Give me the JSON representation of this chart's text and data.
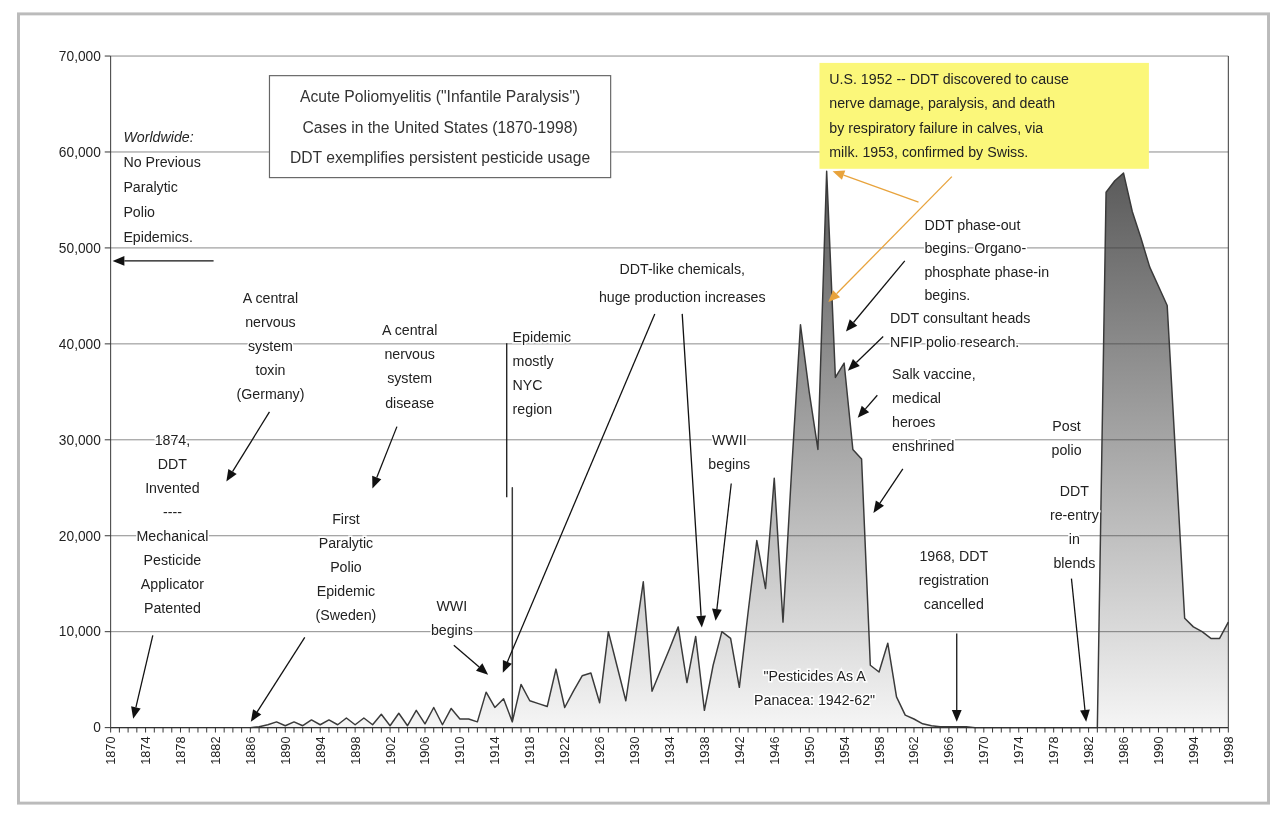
{
  "chart_data": {
    "type": "area",
    "title": "Acute Poliomyelitis (\"Infantile Paralysis\")",
    "subtitle": "Cases in the United States (1870-1998)\nDDT exemplifies persistent pesticide usage",
    "xlim": [
      1870,
      1998
    ],
    "xticks": [
      1870,
      1874,
      1878,
      1882,
      1886,
      1890,
      1894,
      1898,
      1902,
      1906,
      1910,
      1914,
      1918,
      1922,
      1926,
      1930,
      1934,
      1938,
      1942,
      1946,
      1950,
      1954,
      1958,
      1962,
      1966,
      1970,
      1974,
      1978,
      1982,
      1986,
      1990,
      1994,
      1998
    ],
    "ylim": [
      0,
      70000
    ],
    "yticks": [
      0,
      {
        "value": 10000,
        "label": "10,000"
      },
      {
        "value": 20000,
        "label": "20,000"
      },
      {
        "value": 30000,
        "label": "30,000"
      },
      {
        "value": 40000,
        "label": "40,000"
      },
      {
        "value": 50000,
        "label": "50,000"
      },
      {
        "value": 60000,
        "label": "60,000"
      },
      {
        "value": 70000,
        "label": "70,000"
      }
    ],
    "grid": "y",
    "series": [
      {
        "color": "#3a3a3a",
        "x": [
          1886,
          1887,
          1888,
          1889,
          1890,
          1891,
          1892,
          1893,
          1894,
          1895,
          1896,
          1897,
          1898,
          1899,
          1900,
          1901,
          1902,
          1903,
          1904,
          1905,
          1906,
          1907,
          1908,
          1909,
          1910,
          1911,
          1912,
          1913,
          1914,
          1915,
          1916,
          1916,
          1916,
          1917,
          1918,
          1919,
          1920,
          1921,
          1922,
          1923,
          1924,
          1925,
          1926,
          1927,
          1928,
          1929,
          1930,
          1931,
          1932,
          1933,
          1934,
          1935,
          1936,
          1937,
          1938,
          1939,
          1940,
          1941,
          1942,
          1943,
          1944,
          1945,
          1946,
          1947,
          1948,
          1949,
          1950,
          1951,
          1952,
          1953,
          1954,
          1955,
          1956,
          1957,
          1958,
          1959,
          1960,
          1961,
          1962,
          1963,
          1964,
          1965,
          1966,
          1967,
          1968,
          1969,
          1970,
          1975,
          1980,
          1983,
          1984,
          1985,
          1986,
          1987,
          1988,
          1989,
          1990,
          1991,
          1992,
          1993,
          1994,
          1995,
          1996,
          1997,
          1998
        ],
        "values": [
          0,
          100,
          300,
          600,
          200,
          600,
          200,
          800,
          300,
          800,
          300,
          1000,
          300,
          1000,
          300,
          1400,
          200,
          1500,
          200,
          1800,
          400,
          2100,
          300,
          2000,
          900,
          900,
          600,
          3700,
          2100,
          3000,
          600,
          25000,
          600,
          4500,
          2800,
          2500,
          2200,
          6100,
          2100,
          3800,
          5400,
          5700,
          2600,
          10000,
          6400,
          2800,
          9000,
          15200,
          3800,
          6000,
          8200,
          10500,
          4700,
          9500,
          1800,
          6500,
          10000,
          9300,
          4200,
          12000,
          19500,
          14500,
          26000,
          11000,
          27000,
          42000,
          35000,
          29000,
          58000,
          36500,
          38000,
          29000,
          28000,
          6500,
          5800,
          8800,
          3200,
          1300,
          900,
          400,
          200,
          100,
          100,
          100,
          100,
          0,
          0,
          0,
          0,
          0,
          55800,
          57000,
          57800,
          53800,
          51000,
          48000,
          46000,
          44000,
          27700,
          11400,
          10500,
          10000,
          9300,
          9300,
          11000
        ]
      }
    ],
    "annotations": [
      "Worldwide:\nNo Previous\nParalytic\nPolio\nEpidemics.",
      "1874,\nDDT\nInvented\n----\nMechanical\nPesticide\nApplicator\nPatented",
      "A central\nnervous\nsystem\ntoxin\n(Germany)",
      "A central\nnervous\nsystem\ndisease",
      "First\nParalytic\nPolio\nEpidemic\n(Sweden)",
      "WWI\nbegins",
      "Epidemic\nmostly\nNYC\nregion",
      "DDT-like chemicals,\nhuge production increases",
      "WWII\nbegins",
      {
        "text": "U.S. 1952 -- DDT discovered to cause\nnerve damage, paralysis, and death\nby respiratory failure in calves, via\nmilk.  1953, confirmed by Swiss.",
        "x": 1952,
        "y": 58000
      },
      "DDT phase-out\nbegins. Organo-\nphosphate phase-in\nbegins.",
      "DDT consultant heads\nNFIP polio research.",
      "Salk vaccine,\nmedical\nheroes\nenshrined",
      "Post\npolio",
      "DDT\nre-entry\nin\nblends",
      "1968, DDT\nregistration\ncancelled",
      "\"Pesticides As A\nPanacea: 1942-62\""
    ]
  }
}
